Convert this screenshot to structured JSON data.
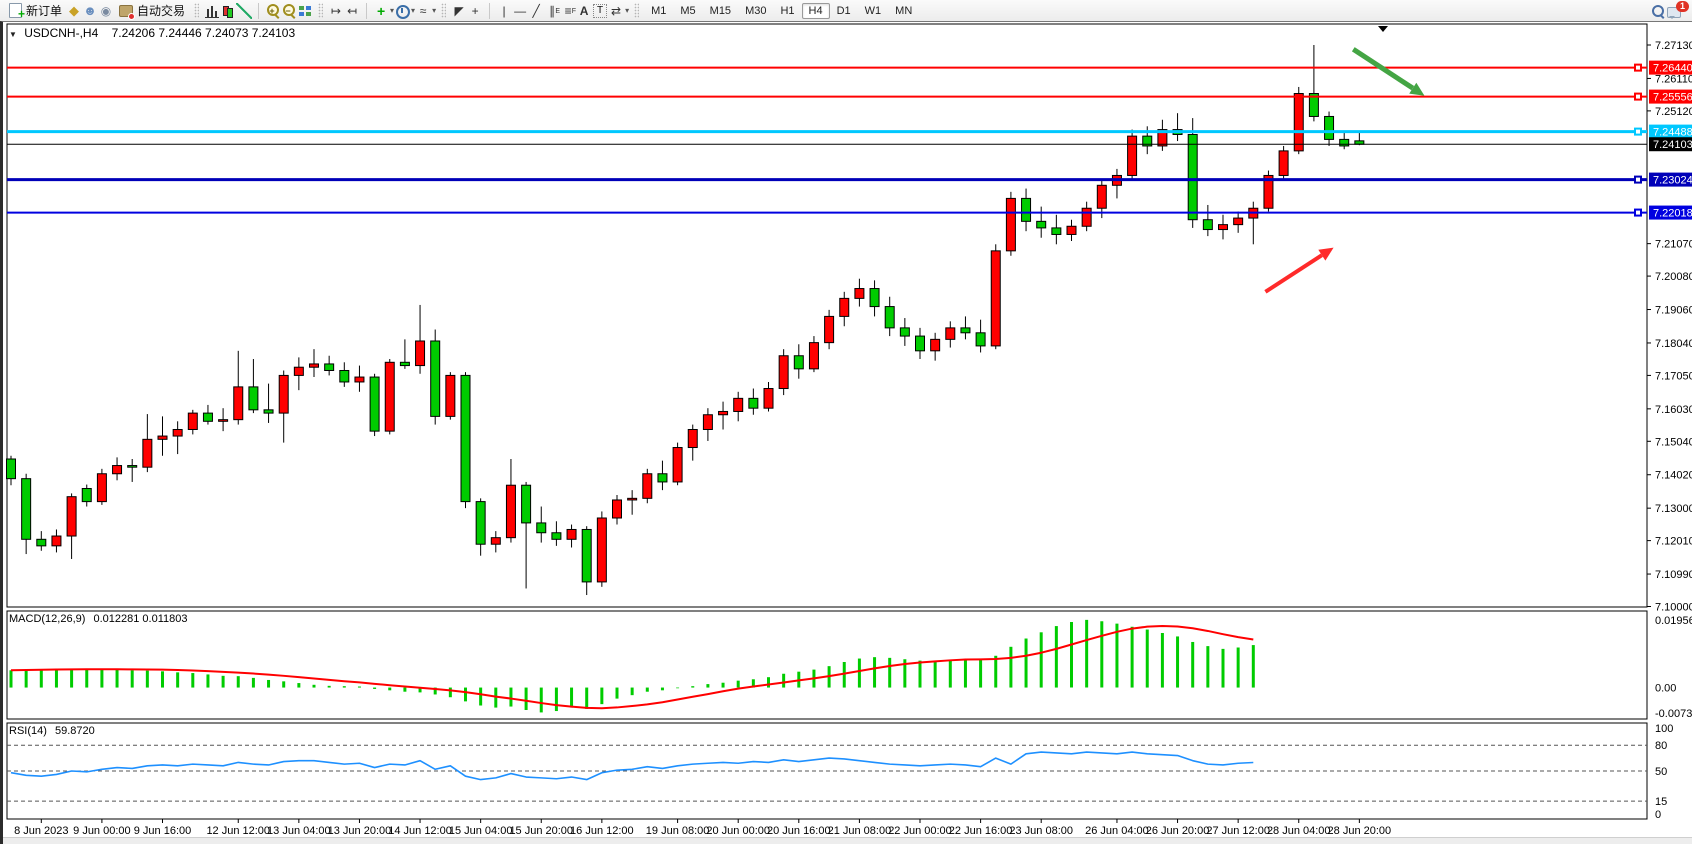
{
  "toolbar": {
    "new_order_label": "新订单",
    "autotrading_label": "自动交易",
    "timeframes": [
      "M1",
      "M5",
      "M15",
      "M30",
      "H1",
      "H4",
      "D1",
      "W1",
      "MN"
    ],
    "active_timeframe": "H4",
    "notification_count": "1",
    "icons": [
      "new-order-icon",
      "accounts-icon",
      "profile-icon",
      "signal-icon",
      "autotrading-icon",
      "bar-chart-icon",
      "candlestick-chart-icon",
      "line-chart-icon",
      "zoom-in-icon",
      "zoom-out-icon",
      "tile-windows-icon",
      "auto-scroll-icon",
      "chart-shift-icon",
      "indicators-icon",
      "periods-icon",
      "templates-icon",
      "cursor-icon",
      "crosshair-icon",
      "vertical-line-icon",
      "horizontal-line-icon",
      "trendline-icon",
      "equidistant-channel-icon",
      "fibonacci-icon",
      "text-icon",
      "text-label-icon",
      "arrows-icon",
      "search-icon",
      "chat-icon"
    ]
  },
  "chart": {
    "title_symbol": "USDCNH-,H4",
    "title_ohlc": "7.24206 7.24446 7.24073 7.24103"
  },
  "macd_panel": {
    "label": "MACD(12,26,9)",
    "values": "0.012281 0.011803"
  },
  "rsi_panel": {
    "label": "RSI(14)",
    "value": "59.8720"
  },
  "chart_data": {
    "type": "candlestick",
    "symbol": "USDCNH-",
    "period": "H4",
    "current_ohlc": {
      "open": 7.24206,
      "high": 7.24446,
      "low": 7.24073,
      "close": 7.24103
    },
    "up_color": "#FF0000",
    "down_color": "#00CC00",
    "price_range": {
      "top": 7.2713,
      "bottom": 7.1
    },
    "price_axis_ticks": [
      "7.27130",
      "7.26110",
      "7.25120",
      "7.21070",
      "7.20080",
      "7.19060",
      "7.18040",
      "7.17050",
      "7.16030",
      "7.15040",
      "7.14020",
      "7.13000",
      "7.12010",
      "7.10990",
      "7.10000"
    ],
    "horizontal_lines": [
      {
        "price": 7.2644,
        "label": "7.26440",
        "color": "#FF0000",
        "width": 2
      },
      {
        "price": 7.25556,
        "label": "7.25556",
        "color": "#FF0000",
        "width": 2
      },
      {
        "price": 7.24488,
        "label": "7.24488",
        "color": "#00C8FF",
        "width": 3
      },
      {
        "price": 7.23024,
        "label": "7.23024",
        "color": "#0000B8",
        "width": 3
      },
      {
        "price": 7.22018,
        "label": "7.22018",
        "color": "#0000E0",
        "width": 2
      }
    ],
    "current_price_line": {
      "price": 7.24103,
      "label": "7.24103",
      "color": "#000000"
    },
    "candles": [
      [
        7.145,
        7.146,
        7.137,
        7.139
      ],
      [
        7.139,
        7.1405,
        7.116,
        7.1205
      ],
      [
        7.1205,
        7.123,
        7.117,
        7.1185
      ],
      [
        7.1185,
        7.1235,
        7.1165,
        7.1215
      ],
      [
        7.1215,
        7.1345,
        7.1145,
        7.1335
      ],
      [
        7.136,
        7.1372,
        7.1305,
        7.132
      ],
      [
        7.132,
        7.142,
        7.131,
        7.1405
      ],
      [
        7.1405,
        7.1455,
        7.1385,
        7.143
      ],
      [
        7.143,
        7.145,
        7.138,
        7.1425
      ],
      [
        7.1425,
        7.1587,
        7.141,
        7.151
      ],
      [
        7.151,
        7.158,
        7.146,
        7.152
      ],
      [
        7.152,
        7.1565,
        7.1465,
        7.154
      ],
      [
        7.154,
        7.16,
        7.1525,
        7.159
      ],
      [
        7.159,
        7.1615,
        7.1555,
        7.1565
      ],
      [
        7.1565,
        7.1605,
        7.1535,
        7.157
      ],
      [
        7.157,
        7.178,
        7.1555,
        7.167
      ],
      [
        7.167,
        7.1755,
        7.159,
        7.16
      ],
      [
        7.16,
        7.168,
        7.156,
        7.159
      ],
      [
        7.159,
        7.172,
        7.15,
        7.1705
      ],
      [
        7.1705,
        7.176,
        7.166,
        7.173
      ],
      [
        7.173,
        7.1785,
        7.17,
        7.174
      ],
      [
        7.174,
        7.1765,
        7.1705,
        7.172
      ],
      [
        7.172,
        7.1745,
        7.167,
        7.1685
      ],
      [
        7.1685,
        7.1735,
        7.1655,
        7.17
      ],
      [
        7.17,
        7.171,
        7.152,
        7.1535
      ],
      [
        7.1535,
        7.1755,
        7.1525,
        7.1745
      ],
      [
        7.1745,
        7.1815,
        7.1725,
        7.1735
      ],
      [
        7.1735,
        7.192,
        7.171,
        7.181
      ],
      [
        7.181,
        7.1845,
        7.1555,
        7.158
      ],
      [
        7.158,
        7.1715,
        7.157,
        7.1705
      ],
      [
        7.1705,
        7.1715,
        7.13,
        7.132
      ],
      [
        7.132,
        7.133,
        7.1155,
        7.119
      ],
      [
        7.119,
        7.123,
        7.1165,
        7.121
      ],
      [
        7.121,
        7.145,
        7.1195,
        7.137
      ],
      [
        7.137,
        7.138,
        7.1055,
        7.1255
      ],
      [
        7.1255,
        7.1305,
        7.1195,
        7.1225
      ],
      [
        7.1225,
        7.126,
        7.1185,
        7.1205
      ],
      [
        7.1205,
        7.125,
        7.118,
        7.1235
      ],
      [
        7.1235,
        7.1245,
        7.1035,
        7.1075
      ],
      [
        7.1075,
        7.129,
        7.106,
        7.127
      ],
      [
        7.127,
        7.134,
        7.125,
        7.1325
      ],
      [
        7.1325,
        7.1355,
        7.128,
        7.133
      ],
      [
        7.133,
        7.142,
        7.1315,
        7.1405
      ],
      [
        7.1405,
        7.1445,
        7.1355,
        7.138
      ],
      [
        7.138,
        7.15,
        7.137,
        7.1485
      ],
      [
        7.1485,
        7.1555,
        7.1445,
        7.154
      ],
      [
        7.154,
        7.1605,
        7.1505,
        7.1585
      ],
      [
        7.1585,
        7.1625,
        7.154,
        7.1595
      ],
      [
        7.1595,
        7.1655,
        7.1565,
        7.1635
      ],
      [
        7.1635,
        7.1665,
        7.1585,
        7.1605
      ],
      [
        7.1605,
        7.1685,
        7.1595,
        7.1665
      ],
      [
        7.1665,
        7.1785,
        7.1645,
        7.1765
      ],
      [
        7.1765,
        7.18,
        7.1695,
        7.1725
      ],
      [
        7.1725,
        7.1825,
        7.1715,
        7.1805
      ],
      [
        7.1805,
        7.1905,
        7.1785,
        7.1885
      ],
      [
        7.1885,
        7.196,
        7.1855,
        7.194
      ],
      [
        7.194,
        7.2,
        7.1915,
        7.197
      ],
      [
        7.197,
        7.1995,
        7.1885,
        7.1915
      ],
      [
        7.1915,
        7.1945,
        7.1825,
        7.185
      ],
      [
        7.185,
        7.188,
        7.1795,
        7.1825
      ],
      [
        7.1825,
        7.185,
        7.1755,
        7.178
      ],
      [
        7.178,
        7.1835,
        7.175,
        7.1815
      ],
      [
        7.1815,
        7.187,
        7.179,
        7.185
      ],
      [
        7.185,
        7.1885,
        7.1815,
        7.1835
      ],
      [
        7.1835,
        7.1875,
        7.1775,
        7.1795
      ],
      [
        7.1795,
        7.2105,
        7.1785,
        7.2085
      ],
      [
        7.2085,
        7.2265,
        7.207,
        7.2245
      ],
      [
        7.2245,
        7.2275,
        7.2145,
        7.2175
      ],
      [
        7.2175,
        7.222,
        7.2125,
        7.2155
      ],
      [
        7.2155,
        7.2195,
        7.2105,
        7.2135
      ],
      [
        7.2135,
        7.218,
        7.2115,
        7.216
      ],
      [
        7.216,
        7.2235,
        7.2145,
        7.2215
      ],
      [
        7.2215,
        7.2305,
        7.2185,
        7.2285
      ],
      [
        7.2285,
        7.2335,
        7.2245,
        7.2315
      ],
      [
        7.2315,
        7.2455,
        7.23,
        7.2435
      ],
      [
        7.2435,
        7.2465,
        7.238,
        7.2405
      ],
      [
        7.2405,
        7.2485,
        7.239,
        7.2455
      ],
      [
        7.2455,
        7.2505,
        7.242,
        7.244
      ],
      [
        7.244,
        7.249,
        7.2155,
        7.218
      ],
      [
        7.218,
        7.2225,
        7.213,
        7.215
      ],
      [
        7.215,
        7.2195,
        7.212,
        7.2165
      ],
      [
        7.2165,
        7.2205,
        7.214,
        7.2185
      ],
      [
        7.2185,
        7.2235,
        7.2105,
        7.2215
      ],
      [
        7.2215,
        7.233,
        7.2205,
        7.2315
      ],
      [
        7.2315,
        7.2405,
        7.23,
        7.239
      ],
      [
        7.239,
        7.2585,
        7.238,
        7.2565
      ],
      [
        7.2565,
        7.2713,
        7.248,
        7.2495
      ],
      [
        7.2495,
        7.251,
        7.2405,
        7.2425
      ],
      [
        7.2425,
        7.2445,
        7.2395,
        7.2405
      ],
      [
        7.24206,
        7.24446,
        7.24073,
        7.24103
      ]
    ],
    "time_labels": [
      {
        "text": "8 Jun 2023",
        "bar": 2
      },
      {
        "text": "9 Jun 00:00",
        "bar": 6
      },
      {
        "text": "9 Jun 16:00",
        "bar": 10
      },
      {
        "text": "12 Jun 12:00",
        "bar": 15
      },
      {
        "text": "13 Jun 04:00",
        "bar": 19
      },
      {
        "text": "13 Jun 20:00",
        "bar": 23
      },
      {
        "text": "14 Jun 12:00",
        "bar": 27
      },
      {
        "text": "15 Jun 04:00",
        "bar": 31
      },
      {
        "text": "15 Jun 20:00",
        "bar": 35
      },
      {
        "text": "16 Jun 12:00",
        "bar": 39
      },
      {
        "text": "19 Jun 08:00",
        "bar": 44
      },
      {
        "text": "20 Jun 00:00",
        "bar": 48
      },
      {
        "text": "20 Jun 16:00",
        "bar": 52
      },
      {
        "text": "21 Jun 08:00",
        "bar": 56
      },
      {
        "text": "22 Jun 00:00",
        "bar": 60
      },
      {
        "text": "22 Jun 16:00",
        "bar": 64
      },
      {
        "text": "23 Jun 08:00",
        "bar": 68
      },
      {
        "text": "26 Jun 04:00",
        "bar": 73
      },
      {
        "text": "26 Jun 20:00",
        "bar": 77
      },
      {
        "text": "27 Jun 12:00",
        "bar": 81
      },
      {
        "text": "28 Jun 04:00",
        "bar": 85
      },
      {
        "text": "28 Jun 20:00",
        "bar": 89
      }
    ],
    "macd": {
      "label": "MACD(12,26,9)",
      "macd_current": 0.012281,
      "signal_current": 0.011803,
      "scale": {
        "max": 0.019561,
        "min": -0.007367
      },
      "scale_labels": [
        "0.019561",
        "0.00",
        "-0.007367"
      ],
      "histogram_color": "#00CC00",
      "signal_color": "#FF0000",
      "signal_period": 9,
      "histogram": [
        0.005,
        0.0052,
        0.0053,
        0.0054,
        0.0055,
        0.0054,
        0.0053,
        0.0052,
        0.005,
        0.0049,
        0.0047,
        0.0044,
        0.0042,
        0.0038,
        0.0034,
        0.0033,
        0.0028,
        0.0022,
        0.0018,
        0.0013,
        0.0008,
        0.0005,
        0.0004,
        0.0003,
        -0.0004,
        -0.0008,
        -0.0012,
        -0.0014,
        -0.002,
        -0.0028,
        -0.004,
        -0.0052,
        -0.0058,
        -0.0055,
        -0.0065,
        -0.0072,
        -0.0068,
        -0.0058,
        -0.0062,
        -0.0048,
        -0.0032,
        -0.0022,
        -0.0012,
        -0.0008,
        -0.0002,
        0.0004,
        0.001,
        0.0014,
        0.002,
        0.0024,
        0.003,
        0.004,
        0.0046,
        0.0052,
        0.0062,
        0.0074,
        0.0084,
        0.0088,
        0.0086,
        0.0082,
        0.0078,
        0.0076,
        0.008,
        0.0082,
        0.008,
        0.0092,
        0.0118,
        0.0142,
        0.016,
        0.0178,
        0.019,
        0.0196,
        0.0192,
        0.0185,
        0.0176,
        0.0168,
        0.0158,
        0.0148,
        0.0132,
        0.012,
        0.0112,
        0.0116,
        0.0123
      ]
    },
    "rsi": {
      "label": "RSI(14)",
      "current": 59.872,
      "levels": [
        80,
        50,
        15
      ],
      "scale_labels": [
        "100",
        "80",
        "50",
        "15",
        "0"
      ],
      "line_color": "#1E90FF",
      "series": [
        48,
        45,
        44,
        46,
        50,
        49,
        52,
        54,
        53,
        56,
        57,
        56,
        58,
        57,
        56,
        60,
        58,
        57,
        61,
        62,
        62,
        60,
        58,
        59,
        54,
        58,
        57,
        62,
        52,
        56,
        44,
        40,
        42,
        47,
        43,
        42,
        41,
        43,
        40,
        48,
        51,
        52,
        55,
        53,
        56,
        58,
        59,
        60,
        59,
        61,
        60,
        63,
        61,
        63,
        65,
        64,
        62,
        60,
        58,
        57,
        56,
        57,
        58,
        57,
        55,
        65,
        58,
        70,
        72,
        71,
        70,
        72,
        71,
        70,
        72,
        70,
        69,
        68,
        62,
        58,
        57,
        59,
        59.87
      ]
    },
    "annotations": {
      "green_arrow": {
        "from_bar": 88.6,
        "from_price": 7.27,
        "to_bar": 93.3,
        "to_price": 7.2558,
        "color": "#44A544"
      },
      "red_arrow": {
        "from_bar": 82.8,
        "from_price": 7.196,
        "to_bar": 87.3,
        "to_price": 7.2095,
        "color": "#FF2A2A"
      }
    }
  }
}
